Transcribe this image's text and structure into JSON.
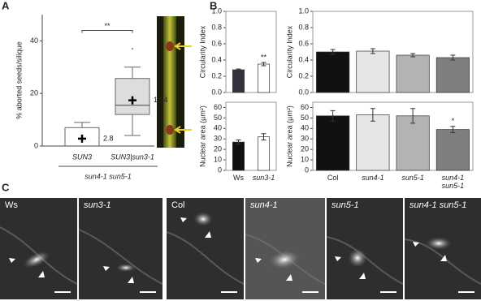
{
  "panel_labels": [
    "A",
    "B",
    "C"
  ],
  "chart_data": [
    {
      "type": "box",
      "ylabel": "% aborted seeds/silique",
      "categories": [
        "SUN3",
        "SUN3|sun3-1"
      ],
      "group_label": "sun4-1 sun5-1",
      "annotation": "**",
      "ylim": [
        0,
        50
      ],
      "yticks": [
        0,
        20,
        40
      ],
      "color": "#dddddd",
      "boxes": [
        {
          "whislo": 0,
          "q1": 0,
          "med": 0,
          "q3": 7,
          "whishi": 9,
          "mean": 2.8,
          "outliers": []
        },
        {
          "whislo": 4,
          "q1": 12,
          "med": 15.5,
          "q3": 25.7,
          "whishi": 30,
          "mean": 17.4,
          "outliers": [
            37
          ]
        }
      ]
    },
    {
      "type": "bar",
      "ylabel": "Circularity Index",
      "values": [
        0.28,
        0.35
      ],
      "errors": [
        0.01,
        0.02
      ],
      "colors": [
        "#33333f",
        "#ffffff"
      ],
      "annotations": [
        {
          "index": 1,
          "text": "**"
        }
      ],
      "ylim": [
        0,
        1
      ],
      "yticks": [
        {
          "value": 0,
          "label": "0.0"
        },
        0.2,
        0.4,
        0.6,
        0.8,
        {
          "value": 1,
          "label": "1.0"
        }
      ]
    },
    {
      "type": "bar",
      "ylabel": "Nuclear area (µm²)",
      "categories": [
        "Ws",
        "sun3-1"
      ],
      "italic": [
        false,
        true
      ],
      "values": [
        27,
        32
      ],
      "errors": [
        2,
        3
      ],
      "colors": [
        "#111111",
        "#ffffff"
      ],
      "ylim": [
        0,
        65
      ],
      "yticks": [
        0,
        10,
        20,
        30,
        40,
        50,
        60
      ]
    },
    {
      "type": "bar",
      "ylabel": "Circularity Index",
      "values": [
        0.5,
        0.51,
        0.46,
        0.43
      ],
      "errors": [
        0.03,
        0.03,
        0.02,
        0.03
      ],
      "colors": [
        "#111111",
        "#e6e6e6",
        "#b3b3b3",
        "#7f7f7f"
      ],
      "ylim": [
        0,
        1
      ],
      "yticks": [
        {
          "value": 0,
          "label": "0.0"
        },
        0.2,
        0.4,
        0.6,
        0.8,
        {
          "value": 1,
          "label": "1.0"
        }
      ]
    },
    {
      "type": "bar",
      "ylabel": "Nuclear area (µm²)",
      "categories": [
        "Col",
        "sun4-1",
        "sun5-1",
        "sun4-1 sun5-1"
      ],
      "italic": [
        false,
        true,
        true,
        true
      ],
      "values": [
        52,
        53,
        52,
        39
      ],
      "errors": [
        5,
        6,
        7,
        3
      ],
      "colors": [
        "#111111",
        "#e6e6e6",
        "#b3b3b3",
        "#7f7f7f"
      ],
      "annotations": [
        {
          "index": 3,
          "text": "*"
        }
      ],
      "ylim": [
        0,
        65
      ],
      "yticks": [
        0,
        10,
        20,
        30,
        40,
        50,
        60
      ]
    }
  ],
  "images": [
    {
      "label": "Ws"
    },
    {
      "label": "sun3-1"
    },
    {
      "label": "Col"
    },
    {
      "label": "sun4-1"
    },
    {
      "label": "sun5-1"
    },
    {
      "label": "sun4-1 sun5-1"
    }
  ]
}
